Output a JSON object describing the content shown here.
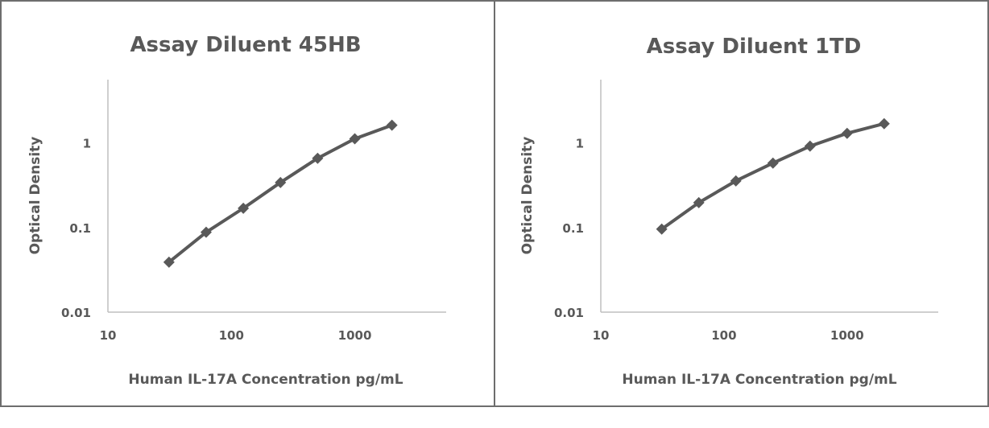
{
  "chart_data": [
    {
      "type": "line",
      "title": "Assay Diluent 45HB",
      "xlabel": "Human IL-17A  Concentration pg/mL",
      "ylabel": "Optical Density",
      "x_scale": "log",
      "y_scale": "log",
      "xlim": [
        10,
        5500
      ],
      "ylim": [
        0.01,
        5.6
      ],
      "xticks": [
        "10",
        "100",
        "1000"
      ],
      "yticks": [
        "0.01",
        "0.1",
        "1"
      ],
      "grid": false,
      "series": [
        {
          "name": "45HB",
          "color": "#595959",
          "x": [
            31.25,
            62.5,
            125,
            250,
            500,
            1000,
            2000
          ],
          "y": [
            0.039,
            0.088,
            0.169,
            0.341,
            0.659,
            1.12,
            1.62
          ]
        }
      ]
    },
    {
      "type": "line",
      "title": "Assay Diluent 1TD",
      "xlabel": "Human IL-17A  Concentration pg/mL",
      "ylabel": "Optical Density",
      "x_scale": "log",
      "y_scale": "log",
      "xlim": [
        10,
        5500
      ],
      "ylim": [
        0.01,
        5.6
      ],
      "xticks": [
        "10",
        "100",
        "1000"
      ],
      "yticks": [
        "0.01",
        "0.1",
        "1"
      ],
      "grid": false,
      "series": [
        {
          "name": "1TD",
          "color": "#595959",
          "x": [
            31.25,
            62.5,
            125,
            250,
            500,
            1000,
            2000
          ],
          "y": [
            0.096,
            0.197,
            0.356,
            0.578,
            0.916,
            1.3,
            1.69
          ]
        }
      ]
    }
  ]
}
